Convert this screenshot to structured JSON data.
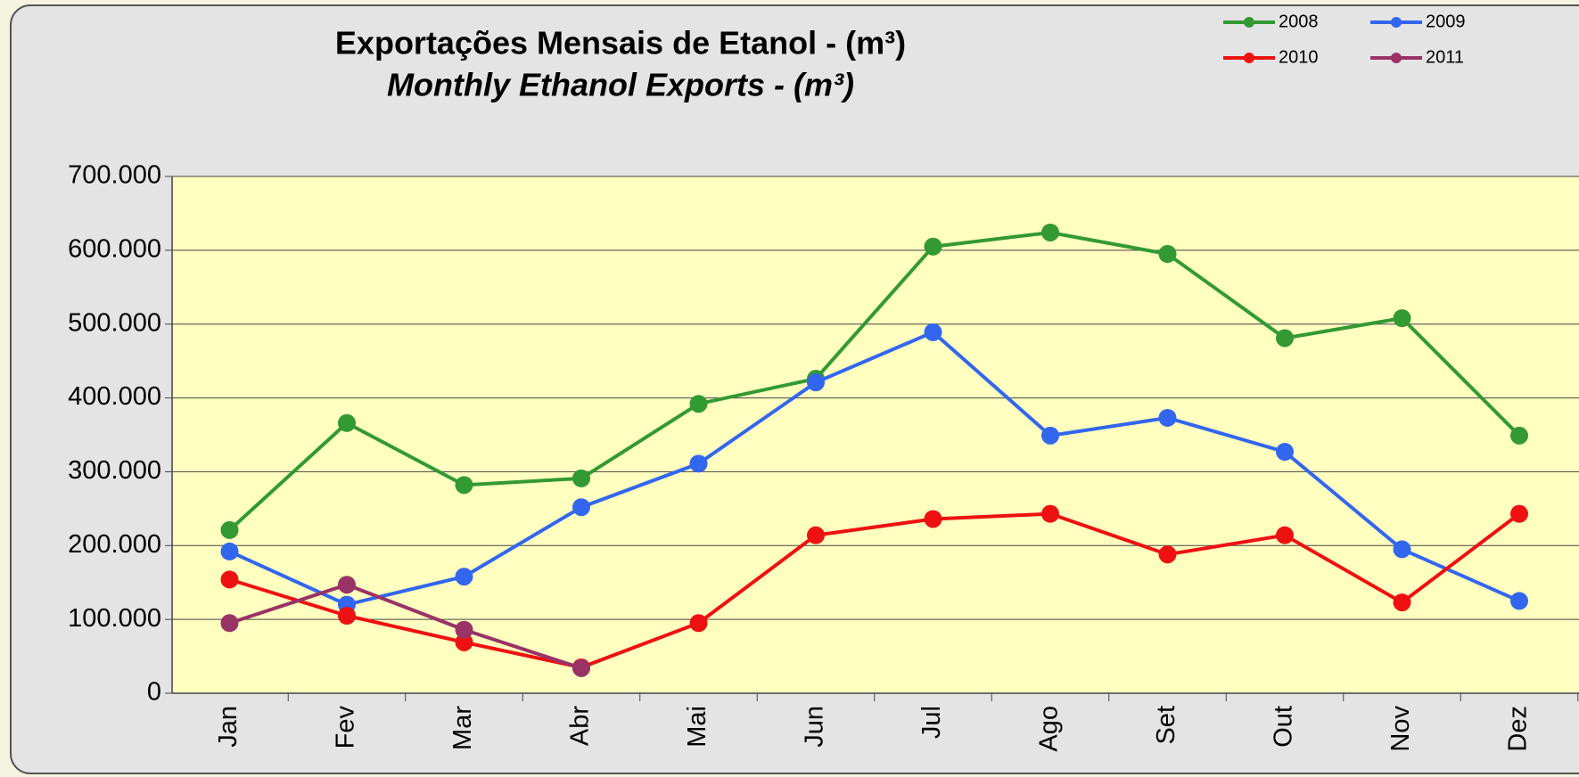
{
  "chart_data": {
    "type": "line",
    "title": "Exportações Mensais de Etanol - (m³)",
    "subtitle": "Monthly Ethanol Exports - (m³)",
    "categories": [
      "Jan",
      "Fev",
      "Mar",
      "Abr",
      "Mai",
      "Jun",
      "Jul",
      "Ago",
      "Set",
      "Out",
      "Nov",
      "Dez"
    ],
    "series": [
      {
        "name": "2008",
        "color": "#339933",
        "values": [
          221000,
          366000,
          282000,
          291000,
          392000,
          426000,
          605000,
          624000,
          595000,
          481000,
          508000,
          349000
        ]
      },
      {
        "name": "2009",
        "color": "#3366ee",
        "values": [
          192000,
          120000,
          158000,
          252000,
          311000,
          421000,
          489000,
          349000,
          373000,
          327000,
          195000,
          125000
        ]
      },
      {
        "name": "2010",
        "color": "#ee1111",
        "values": [
          154000,
          105000,
          69000,
          35000,
          95000,
          214000,
          236000,
          243000,
          188000,
          214000,
          123000,
          243000
        ]
      },
      {
        "name": "2011",
        "color": "#993366",
        "values": [
          95000,
          147000,
          86000,
          34000,
          null,
          null,
          null,
          null,
          null,
          null,
          null,
          null
        ]
      }
    ],
    "ylim": [
      0,
      700000
    ],
    "yticks": [
      0,
      {
        "value": 100000,
        "label": "100.000"
      },
      {
        "value": 200000,
        "label": "200.000"
      },
      {
        "value": 300000,
        "label": "300.000"
      },
      {
        "value": 400000,
        "label": "400.000"
      },
      {
        "value": 500000,
        "label": "500.000"
      },
      {
        "value": 600000,
        "label": "600.000"
      },
      {
        "value": 700000,
        "label": "700.000"
      }
    ],
    "grid": true,
    "legend": "top-right"
  }
}
